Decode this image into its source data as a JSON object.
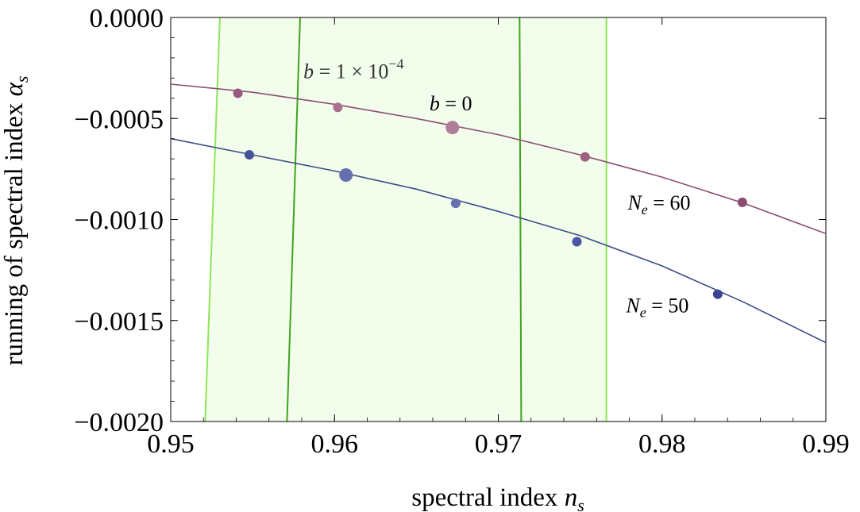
{
  "chart_data": {
    "type": "line",
    "title": "",
    "xlabel": {
      "text": "spectral index ",
      "symbol": "n",
      "sub": "s"
    },
    "ylabel": {
      "text": "running of spectral index ",
      "symbol": "α",
      "sub": "s"
    },
    "xlim": [
      0.95,
      0.99
    ],
    "ylim": [
      -0.002,
      0.0
    ],
    "xticks": [
      0.95,
      0.96,
      0.97,
      0.98,
      0.99
    ],
    "xtick_labels": [
      "0.95",
      "0.96",
      "0.97",
      "0.98",
      "0.99"
    ],
    "yticks": [
      0.0,
      -0.0005,
      -0.001,
      -0.0015,
      -0.002
    ],
    "ytick_labels": [
      "0.0000",
      "−0.0005",
      "−0.0010",
      "−0.0015",
      "−0.0020"
    ],
    "grid": false,
    "bands": [
      {
        "name": "outer",
        "lower": {
          "x_bottom": 0.9521,
          "x_top": 0.953
        },
        "upper": {
          "x_bottom": 0.9766,
          "x_top": 0.9766
        },
        "fill": "#f3fdec",
        "stroke": "#8ee65a"
      },
      {
        "name": "inner",
        "lower": {
          "x_bottom": 0.9571,
          "x_top": 0.9579
        },
        "upper": {
          "x_bottom": 0.9714,
          "x_top": 0.9713
        },
        "fill": "#f3fdec",
        "stroke": "#3fa41e"
      }
    ],
    "series": [
      {
        "color": "#8a4f73",
        "curve": [
          [
            0.95,
            -0.00033
          ],
          [
            0.955,
            -0.00037
          ],
          [
            0.96,
            -0.00043
          ],
          [
            0.965,
            -0.0005
          ],
          [
            0.97,
            -0.00058
          ],
          [
            0.975,
            -0.00068
          ],
          [
            0.98,
            -0.00079
          ],
          [
            0.985,
            -0.00092
          ],
          [
            0.99,
            -0.00107
          ]
        ],
        "points": [
          {
            "x": 0.9541,
            "y": -0.000375,
            "size": "small",
            "color": "#98587f"
          },
          {
            "x": 0.9602,
            "y": -0.000445,
            "size": "small",
            "color": "#a8708f"
          },
          {
            "x": 0.9672,
            "y": -0.000545,
            "size": "large",
            "color": "#b07d99"
          },
          {
            "x": 0.9753,
            "y": -0.00069,
            "size": "small",
            "color": "#a0607f"
          },
          {
            "x": 0.9849,
            "y": -0.000915,
            "size": "small",
            "color": "#8e4b72"
          }
        ]
      },
      {
        "color": "#3f4c86",
        "curve": [
          [
            0.95,
            -0.0006
          ],
          [
            0.955,
            -0.00068
          ],
          [
            0.96,
            -0.00076
          ],
          [
            0.965,
            -0.00085
          ],
          [
            0.97,
            -0.00096
          ],
          [
            0.975,
            -0.00108
          ],
          [
            0.98,
            -0.00123
          ],
          [
            0.985,
            -0.00141
          ],
          [
            0.99,
            -0.00161
          ]
        ],
        "points": [
          {
            "x": 0.9548,
            "y": -0.00068,
            "size": "small",
            "color": "#44529a"
          },
          {
            "x": 0.9607,
            "y": -0.00078,
            "size": "large",
            "color": "#6670ae"
          },
          {
            "x": 0.9674,
            "y": -0.00092,
            "size": "small",
            "color": "#6670ae"
          },
          {
            "x": 0.9748,
            "y": -0.00111,
            "size": "small",
            "color": "#4a56a0"
          },
          {
            "x": 0.9834,
            "y": -0.00137,
            "size": "small",
            "color": "#3a4690"
          }
        ]
      }
    ],
    "annotations": [
      {
        "pre": "",
        "it": "N",
        "sub": "e",
        "post": " = 60",
        "x": 0.9779,
        "y": -0.00095
      },
      {
        "pre": "",
        "it": "N",
        "sub": "e",
        "post": " = 50",
        "x": 0.9778,
        "y": -0.00146
      },
      {
        "pre": "",
        "it": "b",
        "sub": "",
        "post": " = 0",
        "x": 0.9658,
        "y": -0.00046
      },
      {
        "pre": "",
        "it": "b",
        "sub": "",
        "post": " = 1 × 10",
        "sup": "−4",
        "x": 0.9581,
        "y": -0.0003
      }
    ]
  }
}
